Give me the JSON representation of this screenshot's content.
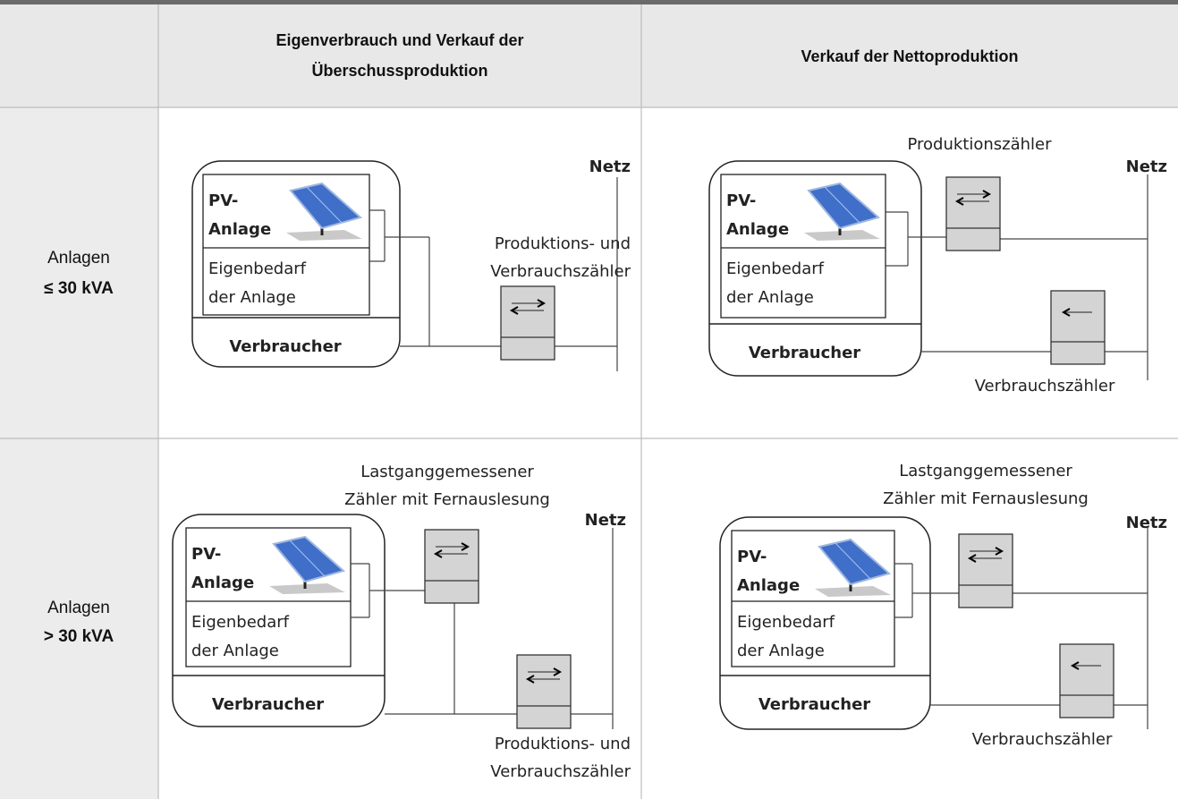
{
  "header": {
    "columns": [
      [
        "Eigenverbrauch und Verkauf der",
        "Überschussproduktion"
      ],
      [
        "Verkauf der Nettoproduktion"
      ]
    ]
  },
  "rows": [
    {
      "label": "Anlagen",
      "threshold": "≤ 30 kVA",
      "cells": [
        {
          "pv": [
            "PV-",
            "Anlage"
          ],
          "own_use": [
            "Eigenbedarf",
            "der Anlage"
          ],
          "consumer": "Verbraucher",
          "grid": "Netz",
          "meter_labels": [
            [
              "Produktions- und",
              "Verbrauchszähler"
            ]
          ]
        },
        {
          "pv": [
            "PV-",
            "Anlage"
          ],
          "own_use": [
            "Eigenbedarf",
            "der Anlage"
          ],
          "consumer": "Verbraucher",
          "grid": "Netz",
          "meter_labels": [
            [
              "Produktionszähler"
            ],
            [
              "Verbrauchszähler"
            ]
          ]
        }
      ]
    },
    {
      "label": "Anlagen",
      "threshold": "> 30 kVA",
      "cells": [
        {
          "pv": [
            "PV-",
            "Anlage"
          ],
          "own_use": [
            "Eigenbedarf",
            "der Anlage"
          ],
          "consumer": "Verbraucher",
          "grid": "Netz",
          "meter_labels": [
            [
              "Lastganggemessener",
              "Zähler mit Fernauslesung"
            ],
            [
              "Produktions- und",
              "Verbrauchszähler"
            ]
          ]
        },
        {
          "pv": [
            "PV-",
            "Anlage"
          ],
          "own_use": [
            "Eigenbedarf",
            "der Anlage"
          ],
          "consumer": "Verbraucher",
          "grid": "Netz",
          "meter_labels": [
            [
              "Lastganggemessener",
              "Zähler mit Fernauslesung"
            ],
            [
              "Verbrauchszähler"
            ]
          ]
        }
      ]
    }
  ]
}
